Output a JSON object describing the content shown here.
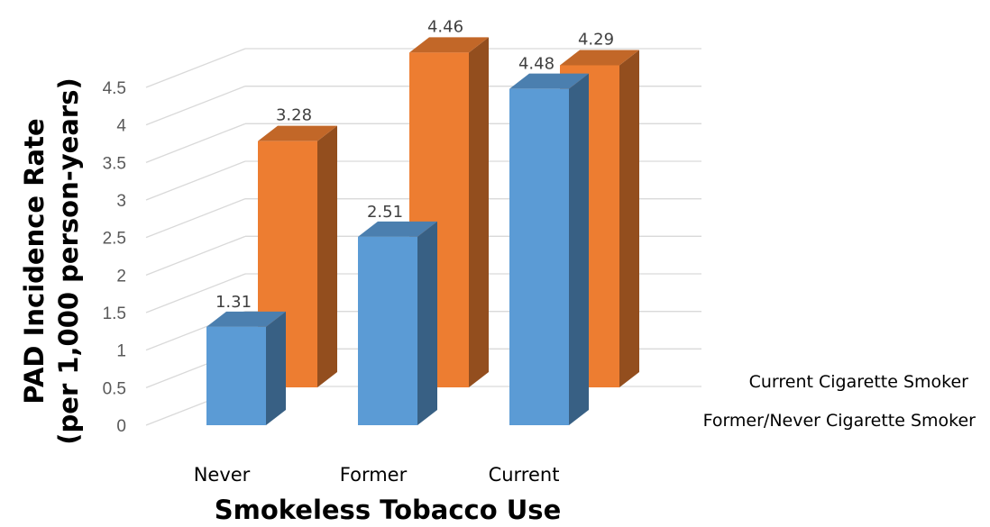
{
  "chart_data": {
    "type": "bar",
    "categories": [
      "Never",
      "Former",
      "Current"
    ],
    "series": [
      {
        "name": "Former/Never Cigarette Smoker",
        "values": [
          1.31,
          2.51,
          4.48
        ],
        "color": "#5b9bd5"
      },
      {
        "name": "Current Cigarette Smoker",
        "values": [
          3.28,
          4.46,
          4.29
        ],
        "color": "#ed7d31"
      }
    ],
    "ylabel_line1": "PAD Incidence Rate",
    "ylabel_line2": "(per 1,000 person-years)",
    "xlabel": "Smokeless Tobacco Use",
    "ylim": [
      0,
      4.5
    ],
    "yticks": [
      "0",
      "0.5",
      "1",
      "1.5",
      "2",
      "2.5",
      "3",
      "3.5",
      "4",
      "4.5"
    ],
    "grid": true,
    "style": "3d-column",
    "legend_position": "right"
  }
}
